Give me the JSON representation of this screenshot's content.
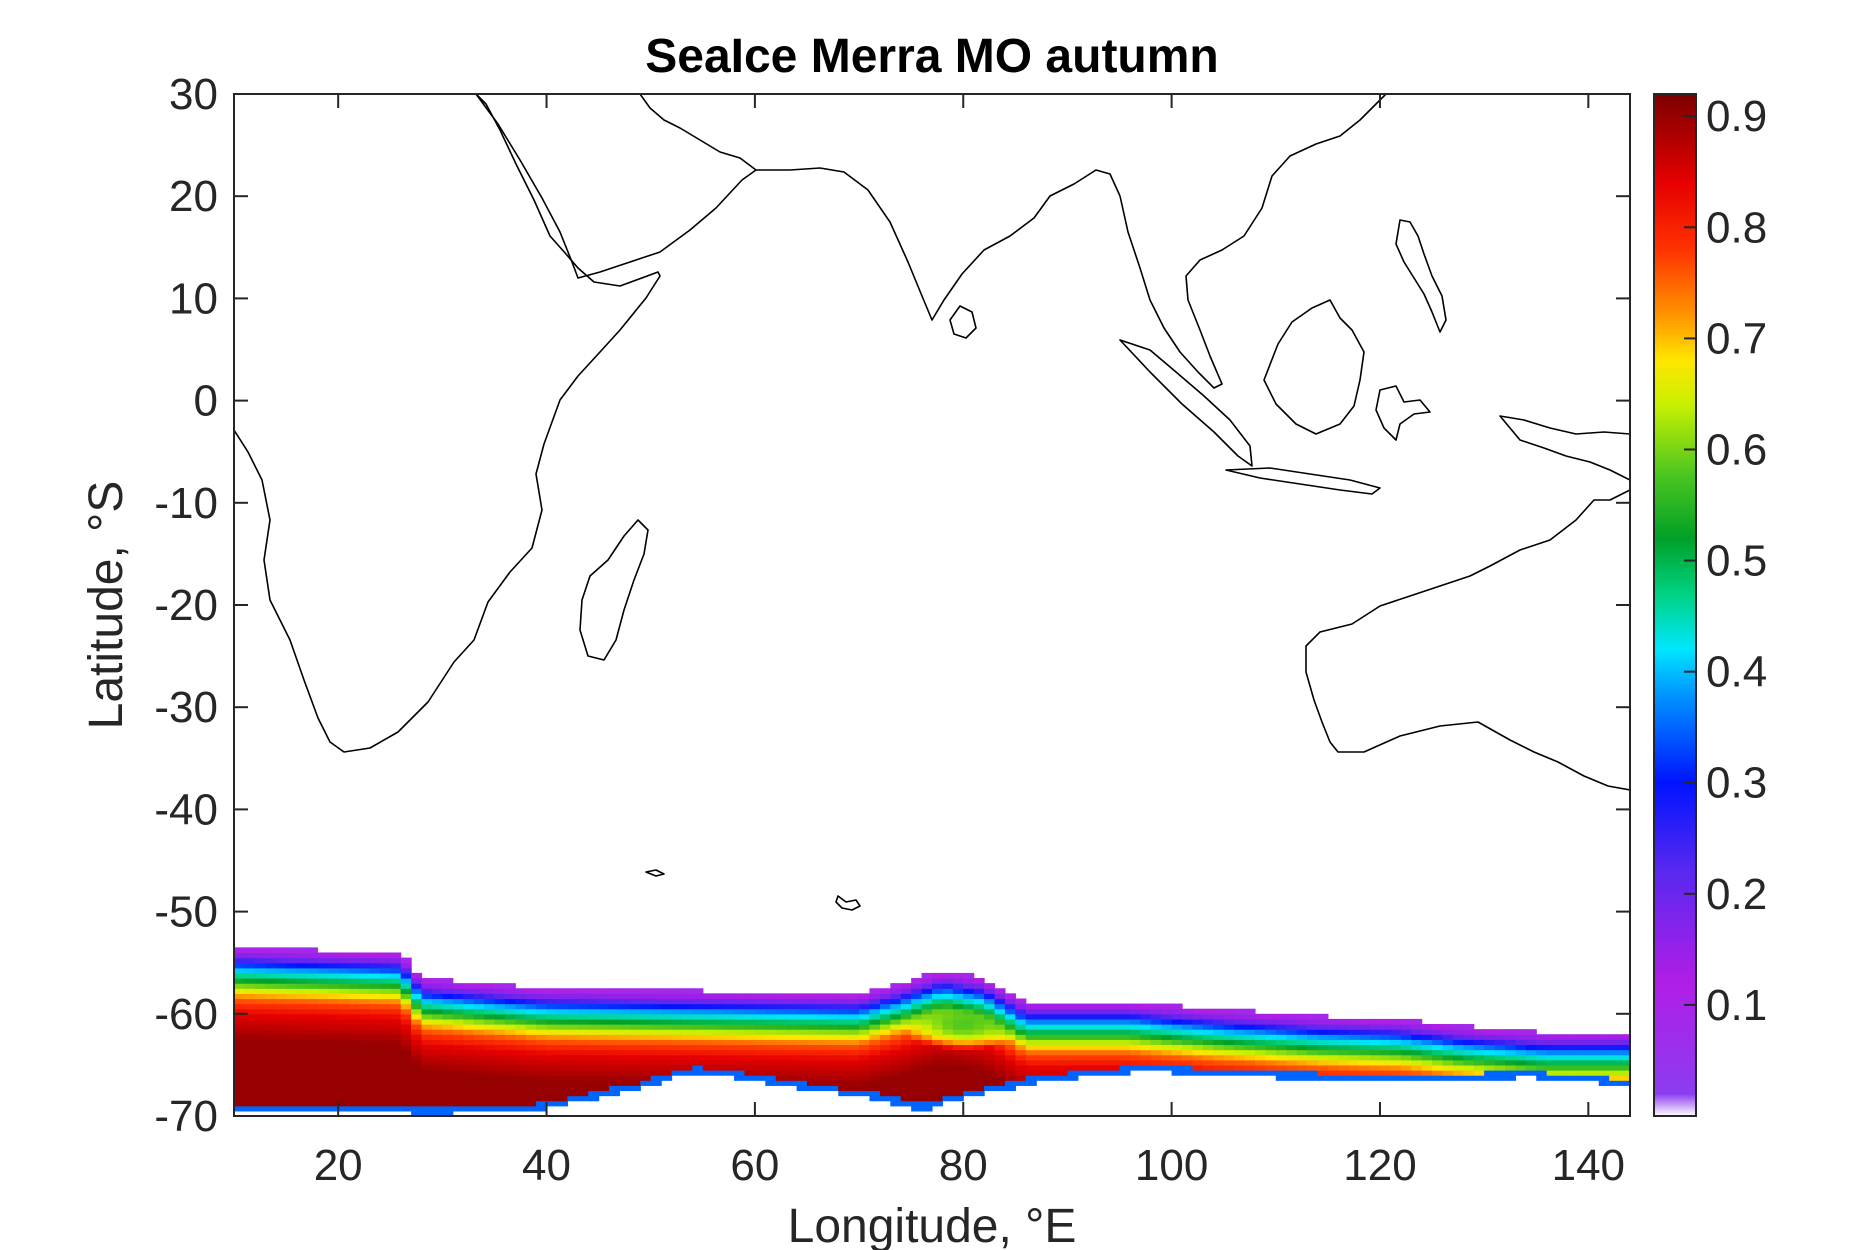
{
  "chart_data": {
    "type": "heatmap",
    "title": "SeaIce Merra MO autumn",
    "xlabel": "Longitude, °E",
    "ylabel": "Latitude, °S",
    "xlim": [
      10,
      144
    ],
    "ylim": [
      -70,
      30
    ],
    "x_ticks": [
      "20",
      "40",
      "60",
      "80",
      "100",
      "120",
      "140"
    ],
    "y_ticks": [
      "30",
      "20",
      "10",
      "0",
      "-10",
      "-20",
      "-30",
      "-40",
      "-50",
      "-60",
      "-70"
    ],
    "colorbar": {
      "range": [
        0.0,
        0.92
      ],
      "ticks": [
        "0.9",
        "0.8",
        "0.7",
        "0.6",
        "0.5",
        "0.4",
        "0.3",
        "0.2",
        "0.1"
      ],
      "colormap_stops": [
        {
          "value": 0.0,
          "color": "#ffffff"
        },
        {
          "value": 0.02,
          "color": "#8c3cf0"
        },
        {
          "value": 0.12,
          "color": "#b01ee6"
        },
        {
          "value": 0.22,
          "color": "#5a28f0"
        },
        {
          "value": 0.3,
          "color": "#0014ff"
        },
        {
          "value": 0.38,
          "color": "#0096ff"
        },
        {
          "value": 0.42,
          "color": "#00e6ff"
        },
        {
          "value": 0.47,
          "color": "#00d282"
        },
        {
          "value": 0.52,
          "color": "#00a028"
        },
        {
          "value": 0.58,
          "color": "#50c81e"
        },
        {
          "value": 0.64,
          "color": "#c8f000"
        },
        {
          "value": 0.68,
          "color": "#ffe600"
        },
        {
          "value": 0.72,
          "color": "#ff9600"
        },
        {
          "value": 0.78,
          "color": "#ff3200"
        },
        {
          "value": 0.84,
          "color": "#e60000"
        },
        {
          "value": 0.92,
          "color": "#7d0000"
        }
      ]
    },
    "sea_ice_edge_north": [
      [
        10,
        -53.5
      ],
      [
        26,
        -54
      ],
      [
        28,
        -56.5
      ],
      [
        40,
        -57.5
      ],
      [
        70,
        -58
      ],
      [
        74,
        -57
      ],
      [
        78,
        -55.8
      ],
      [
        82,
        -56.5
      ],
      [
        86,
        -58.8
      ],
      [
        96,
        -58.8
      ],
      [
        104,
        -59.5
      ],
      [
        114,
        -60.2
      ],
      [
        122,
        -60.5
      ],
      [
        128,
        -61.2
      ],
      [
        136,
        -61.8
      ],
      [
        144,
        -61.8
      ]
    ],
    "sea_ice_edge_south": [
      [
        10,
        -69.5
      ],
      [
        30,
        -69.8
      ],
      [
        40,
        -69.3
      ],
      [
        48,
        -67.5
      ],
      [
        54,
        -65.8
      ],
      [
        58,
        -66.2
      ],
      [
        66,
        -67.5
      ],
      [
        72,
        -68.4
      ],
      [
        76,
        -69.4
      ],
      [
        82,
        -67.8
      ],
      [
        88,
        -66.5
      ],
      [
        98,
        -65.6
      ],
      [
        108,
        -66.2
      ],
      [
        116,
        -66.4
      ],
      [
        124,
        -66.6
      ],
      [
        134,
        -66.2
      ],
      [
        144,
        -67
      ]
    ],
    "concentration_profile": [
      {
        "depth": 0.0,
        "value": 0.08
      },
      {
        "depth": 1.0,
        "value": 0.2
      },
      {
        "depth": 2.0,
        "value": 0.38
      },
      {
        "depth": 3.0,
        "value": 0.5
      },
      {
        "depth": 4.0,
        "value": 0.64
      },
      {
        "depth": 5.0,
        "value": 0.75
      },
      {
        "depth": 6.5,
        "value": 0.84
      },
      {
        "depth": 9.0,
        "value": 0.9
      }
    ],
    "low_concentration_anomaly": {
      "lon": 80,
      "lat": -61,
      "value": 0.58
    }
  }
}
